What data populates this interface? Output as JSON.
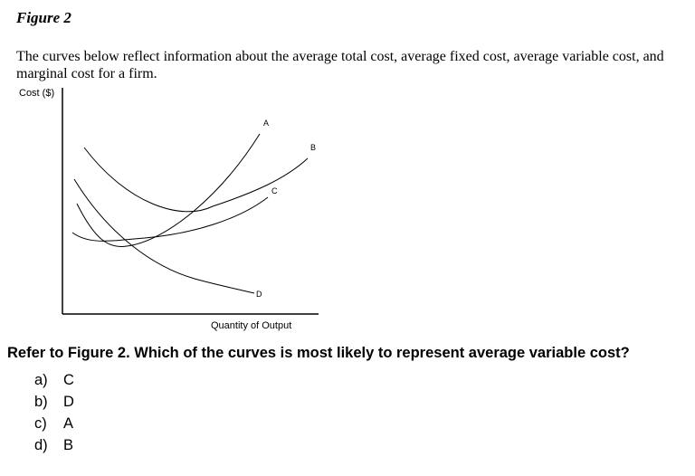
{
  "figure": {
    "title": "Figure 2",
    "intro": "The curves below reflect information about the average total cost, average fixed cost, average variable cost, and marginal cost for a firm.",
    "y_axis_label": "Cost ($)",
    "x_axis_label": "Quantity of Output",
    "curves": [
      {
        "label": "A"
      },
      {
        "label": "B"
      },
      {
        "label": "C"
      },
      {
        "label": "D"
      }
    ]
  },
  "question": {
    "text": "Refer to Figure 2. Which of the curves is most likely to represent average variable cost?",
    "options": [
      {
        "letter": "a)",
        "answer": "C"
      },
      {
        "letter": "b)",
        "answer": "D"
      },
      {
        "letter": "c)",
        "answer": "A"
      },
      {
        "letter": "d)",
        "answer": "B"
      }
    ]
  }
}
